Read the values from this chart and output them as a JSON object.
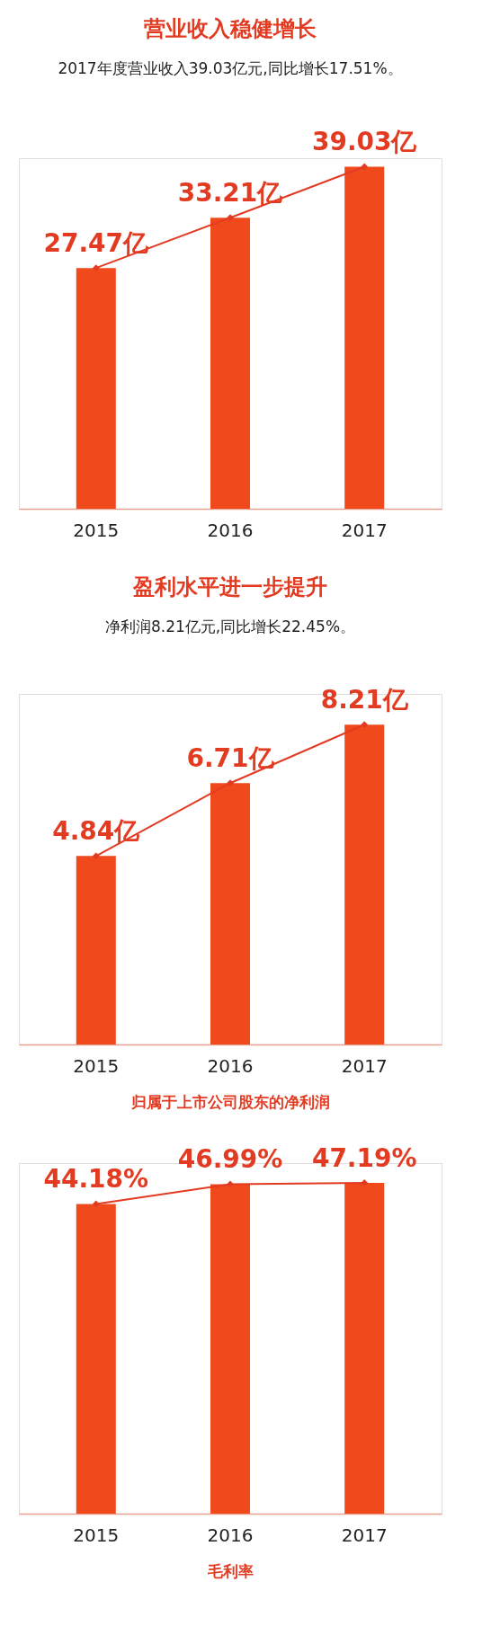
{
  "chart_data": [
    {
      "type": "bar",
      "title": "营业收入稳健增长",
      "subtitle": "2017年度营业收入39.03亿元,同比增长17.51%。",
      "categories": [
        "2015",
        "2016",
        "2017"
      ],
      "tick_labels": "x",
      "marker": "diamond",
      "series": [
        {
          "color": "#f04a1c",
          "values": [
            27.47,
            33.21,
            39.03
          ]
        },
        {
          "type": "line",
          "color": "#e23b22",
          "values": [
            27.47,
            33.21,
            39.03
          ],
          "value_labels": [
            "27.47亿",
            "33.21亿",
            "39.03亿"
          ]
        }
      ]
    },
    {
      "type": "bar",
      "title": "盈利水平进一步提升",
      "subtitle": "净利润8.21亿元,同比增长22.45%。",
      "xlabel": "归属于上市公司股东的净利润",
      "categories": [
        "2015",
        "2016",
        "2017"
      ],
      "tick_labels": "x",
      "marker": "diamond",
      "series": [
        {
          "color": "#f04a1c",
          "values": [
            4.84,
            6.71,
            8.21
          ]
        },
        {
          "type": "line",
          "color": "#e23b22",
          "values": [
            4.84,
            6.71,
            8.21
          ],
          "value_labels": [
            "4.84亿",
            "6.71亿",
            "8.21亿"
          ]
        }
      ]
    },
    {
      "type": "bar",
      "xlabel": "毛利率",
      "categories": [
        "2015",
        "2016",
        "2017"
      ],
      "tick_labels": "x",
      "marker": "diamond",
      "series": [
        {
          "color": "#f04a1c",
          "values": [
            44.18,
            46.99,
            47.19
          ]
        },
        {
          "type": "line",
          "color": "#e23b22",
          "values": [
            44.18,
            46.99,
            47.19
          ],
          "value_labels": [
            "44.18%",
            "46.99%",
            "47.19%"
          ]
        }
      ]
    }
  ]
}
